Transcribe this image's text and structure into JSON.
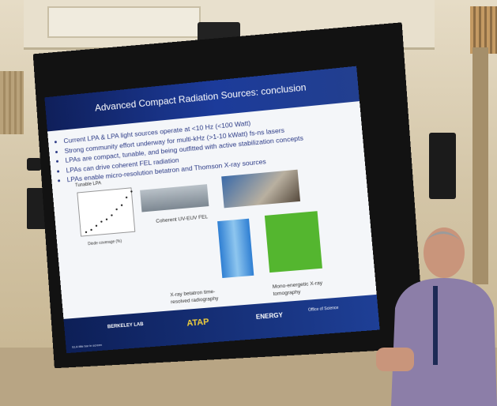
{
  "slide": {
    "title": "Advanced Compact Radiation Sources: conclusion",
    "bullets": [
      "Current LPA & LPA light sources operate at <10 Hz (<100 Watt)",
      "Strong community effort underway for multi-kHz (>1-10 kWatt) fs-ns lasers",
      "LPAs are compact, tunable, and being outfitted with active stabilization concepts",
      "LPAs can drive coherent FEL radiation",
      "LPAs enable micro-resolution betatron and Thomson X-ray sources"
    ],
    "plot_title": "Tunable LPA",
    "plot_xlabel": "Diode coverage (%)",
    "uv_label": "Coherent UV-EUV FEL",
    "xray_label": "X-ray betatron time-resolved radiography",
    "mono_label": "Mono-energetic X-ray tomography",
    "footer_small": "ELA title bar in screen",
    "logo_berkeley": "BERKELEY LAB",
    "logo_atap": "ATAP",
    "logo_energy": "ENERGY",
    "logo_office": "Office of Science"
  },
  "chart_data": {
    "type": "scatter",
    "title": "Tunable LPA",
    "xlabel": "Diode coverage (%)",
    "ylabel": "",
    "x": [
      41,
      42,
      43,
      44,
      45,
      46,
      47,
      48,
      49,
      50
    ],
    "values": [
      11,
      12,
      14,
      16,
      17,
      19,
      22,
      24,
      28,
      31
    ],
    "xlim": [
      40,
      50
    ]
  }
}
